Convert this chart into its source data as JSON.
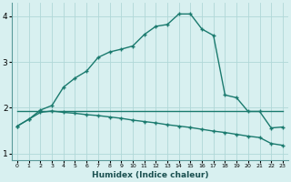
{
  "line1_x": [
    0,
    1,
    2,
    3,
    4,
    5,
    6,
    7,
    8,
    9,
    10,
    11,
    12,
    13,
    14,
    15,
    16,
    17,
    18,
    19,
    20,
    21,
    22,
    23
  ],
  "line1_y": [
    1.6,
    1.75,
    1.95,
    2.05,
    2.45,
    2.65,
    2.8,
    3.1,
    3.22,
    3.28,
    3.35,
    3.6,
    3.78,
    3.82,
    4.05,
    4.05,
    3.72,
    3.58,
    2.28,
    2.22,
    1.92,
    1.92,
    1.56,
    1.58
  ],
  "line2_x": [
    0,
    1,
    2,
    3,
    15,
    20,
    21,
    22,
    23
  ],
  "line2_y": [
    1.92,
    1.92,
    1.92,
    1.92,
    1.92,
    1.92,
    1.92,
    1.92,
    1.92
  ],
  "line3_x": [
    0,
    1,
    2,
    3,
    4,
    5,
    6,
    7,
    8,
    9,
    10,
    11,
    12,
    13,
    14,
    15,
    16,
    17,
    18,
    19,
    20,
    21,
    22,
    23
  ],
  "line3_y": [
    1.6,
    1.75,
    1.9,
    1.93,
    1.9,
    1.88,
    1.85,
    1.83,
    1.8,
    1.77,
    1.73,
    1.7,
    1.67,
    1.63,
    1.6,
    1.57,
    1.53,
    1.49,
    1.46,
    1.42,
    1.38,
    1.35,
    1.22,
    1.18
  ],
  "line_color": "#1a7a6e",
  "bg_color": "#d8f0f0",
  "grid_color": "#b0d8d8",
  "xlabel": "Humidex (Indice chaleur)",
  "ylim": [
    0.85,
    4.3
  ],
  "xlim": [
    -0.5,
    23.5
  ],
  "yticks": [
    1,
    2,
    3,
    4
  ],
  "xticks": [
    0,
    1,
    2,
    3,
    4,
    5,
    6,
    7,
    8,
    9,
    10,
    11,
    12,
    13,
    14,
    15,
    16,
    17,
    18,
    19,
    20,
    21,
    22,
    23
  ]
}
